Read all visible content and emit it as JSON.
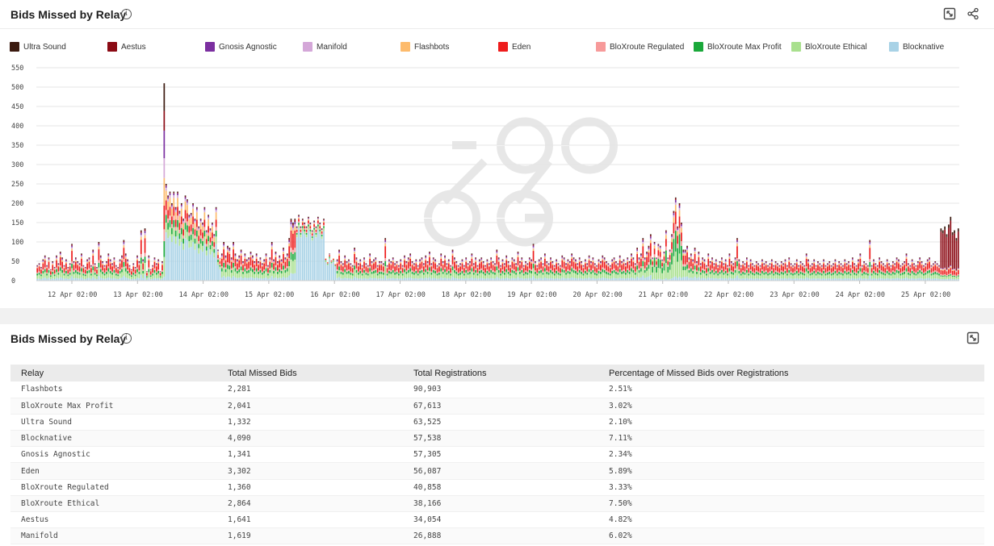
{
  "chart_panel": {
    "title": "Bids Missed by Relay",
    "info_icon": "info-icon",
    "expand_icon": "expand-icon",
    "share_icon": "share-icon"
  },
  "table_panel": {
    "title": "Bids Missed by Relay",
    "info_icon": "info-icon",
    "expand_icon": "expand-icon"
  },
  "chart_data": {
    "type": "bar",
    "stacked": true,
    "title": "Bids Missed by Relay",
    "xlabel": "",
    "ylabel": "",
    "ylim": [
      0,
      550
    ],
    "yticks": [
      0,
      50,
      100,
      150,
      200,
      250,
      300,
      350,
      400,
      450,
      500,
      550
    ],
    "xticks": [
      "12 Apr 02:00",
      "13 Apr 02:00",
      "14 Apr 02:00",
      "15 Apr 02:00",
      "16 Apr 02:00",
      "17 Apr 02:00",
      "18 Apr 02:00",
      "19 Apr 02:00",
      "20 Apr 02:00",
      "21 Apr 02:00",
      "22 Apr 02:00",
      "23 Apr 02:00",
      "24 Apr 02:00",
      "25 Apr 02:00"
    ],
    "grid": true,
    "legend_position": "top",
    "series": [
      {
        "name": "Ultra Sound",
        "color": "#3b1a0f"
      },
      {
        "name": "Aestus",
        "color": "#8b0a14"
      },
      {
        "name": "Gnosis Agnostic",
        "color": "#7b2fa0"
      },
      {
        "name": "Manifold",
        "color": "#d4a7d8"
      },
      {
        "name": "Flashbots",
        "color": "#fdbb6c"
      },
      {
        "name": "Eden",
        "color": "#ee1c1c"
      },
      {
        "name": "BloXroute Regulated",
        "color": "#f79a9a"
      },
      {
        "name": "BloXroute Max Profit",
        "color": "#1aa83a"
      },
      {
        "name": "BloXroute Ethical",
        "color": "#a9e08e"
      },
      {
        "name": "Blocknative",
        "color": "#a8d2e6"
      }
    ],
    "totals": [
      40,
      45,
      35,
      55,
      65,
      40,
      60,
      30,
      50,
      35,
      65,
      45,
      75,
      60,
      40,
      55,
      35,
      45,
      95,
      50,
      60,
      50,
      45,
      70,
      40,
      35,
      55,
      60,
      40,
      80,
      45,
      35,
      100,
      65,
      50,
      40,
      50,
      70,
      55,
      45,
      60,
      40,
      35,
      55,
      65,
      105,
      70,
      55,
      40,
      30,
      45,
      35,
      65,
      50,
      130,
      55,
      135,
      25,
      65,
      30,
      40,
      60,
      45,
      55,
      25,
      50,
      510,
      250,
      220,
      230,
      200,
      230,
      190,
      230,
      180,
      200,
      160,
      220,
      210,
      170,
      175,
      200,
      160,
      190,
      140,
      160,
      150,
      190,
      130,
      170,
      135,
      150,
      120,
      190,
      80,
      60,
      70,
      100,
      65,
      90,
      85,
      60,
      100,
      70,
      55,
      65,
      80,
      50,
      70,
      55,
      60,
      75,
      65,
      50,
      70,
      50,
      60,
      45,
      55,
      70,
      40,
      60,
      100,
      55,
      75,
      50,
      65,
      55,
      85,
      60,
      70,
      110,
      160,
      150,
      160,
      140,
      170,
      140,
      160,
      150,
      140,
      165,
      150,
      130,
      155,
      140,
      165,
      150,
      135,
      160,
      60,
      50,
      70,
      55,
      60,
      45,
      55,
      80,
      50,
      45,
      65,
      50,
      55,
      45,
      40,
      85,
      60,
      45,
      55,
      40,
      60,
      45,
      40,
      70,
      50,
      55,
      60,
      40,
      50,
      50,
      45,
      110,
      40,
      55,
      50,
      60,
      45,
      50,
      40,
      55,
      40,
      65,
      50,
      60,
      70,
      50,
      45,
      55,
      40,
      55,
      60,
      45,
      65,
      50,
      75,
      45,
      60,
      55,
      40,
      45,
      70,
      50,
      65,
      45,
      55,
      40,
      80,
      60,
      50,
      40,
      45,
      55,
      40,
      60,
      45,
      50,
      70,
      45,
      60,
      40,
      55,
      60,
      50,
      40,
      55,
      45,
      60,
      50,
      45,
      80,
      60,
      40,
      55,
      45,
      65,
      50,
      40,
      60,
      55,
      45,
      75,
      50,
      60,
      40,
      50,
      45,
      60,
      55,
      95,
      50,
      40,
      55,
      60,
      45,
      70,
      50,
      45,
      60,
      50,
      40,
      55,
      45,
      40,
      65,
      60,
      45,
      55,
      50,
      70,
      60,
      55,
      45,
      60,
      50,
      40,
      55,
      45,
      65,
      50,
      60,
      45,
      40,
      55,
      50,
      65,
      60,
      50,
      45,
      40,
      55,
      60,
      50,
      45,
      65,
      50,
      55,
      45,
      60,
      50,
      70,
      60,
      45,
      85,
      60,
      70,
      110,
      60,
      75,
      90,
      120,
      60,
      100,
      60,
      95,
      90,
      55,
      75,
      130,
      60,
      80,
      120,
      180,
      215,
      140,
      200,
      150,
      80,
      80,
      90,
      60,
      70,
      55,
      85,
      50,
      75,
      45,
      60,
      55,
      40,
      70,
      50,
      60,
      45,
      55,
      40,
      50,
      60,
      45,
      55,
      40,
      70,
      50,
      45,
      60,
      110,
      55,
      40,
      50,
      45,
      60,
      40,
      55,
      45,
      40,
      50,
      45,
      40,
      55,
      45,
      50,
      40,
      45,
      55,
      40,
      50,
      45,
      40,
      50,
      45,
      55,
      40,
      60,
      45,
      40,
      45,
      55,
      40,
      50,
      45,
      40,
      70,
      55,
      40,
      45,
      55,
      40,
      50,
      45,
      40,
      55,
      40,
      45,
      50,
      40,
      45,
      55,
      40,
      50,
      45,
      40,
      55,
      45,
      50,
      40,
      60,
      45,
      40,
      55,
      70,
      40,
      50,
      45,
      40,
      105,
      40,
      55,
      45,
      40,
      60,
      50,
      45,
      40,
      55,
      45,
      40,
      50,
      45,
      60,
      55,
      40,
      45,
      50,
      70,
      45,
      40,
      55,
      45,
      40,
      50,
      60,
      50,
      40,
      45,
      55,
      60,
      40,
      45,
      50,
      45,
      40,
      135,
      130,
      140,
      120,
      145,
      165,
      125,
      130,
      110,
      135
    ]
  },
  "table": {
    "columns": [
      "Relay",
      "Total Missed Bids",
      "Total Registrations",
      "Percentage of Missed Bids over Registrations"
    ],
    "rows": [
      [
        "Flashbots",
        "2,281",
        "90,903",
        "2.51%"
      ],
      [
        "BloXroute Max Profit",
        "2,041",
        "67,613",
        "3.02%"
      ],
      [
        "Ultra Sound",
        "1,332",
        "63,525",
        "2.10%"
      ],
      [
        "Blocknative",
        "4,090",
        "57,538",
        "7.11%"
      ],
      [
        "Gnosis Agnostic",
        "1,341",
        "57,305",
        "2.34%"
      ],
      [
        "Eden",
        "3,302",
        "56,087",
        "5.89%"
      ],
      [
        "BloXroute Regulated",
        "1,360",
        "40,858",
        "3.33%"
      ],
      [
        "BloXroute Ethical",
        "2,864",
        "38,166",
        "7.50%"
      ],
      [
        "Aestus",
        "1,641",
        "34,054",
        "4.82%"
      ],
      [
        "Manifold",
        "1,619",
        "26,888",
        "6.02%"
      ]
    ]
  }
}
